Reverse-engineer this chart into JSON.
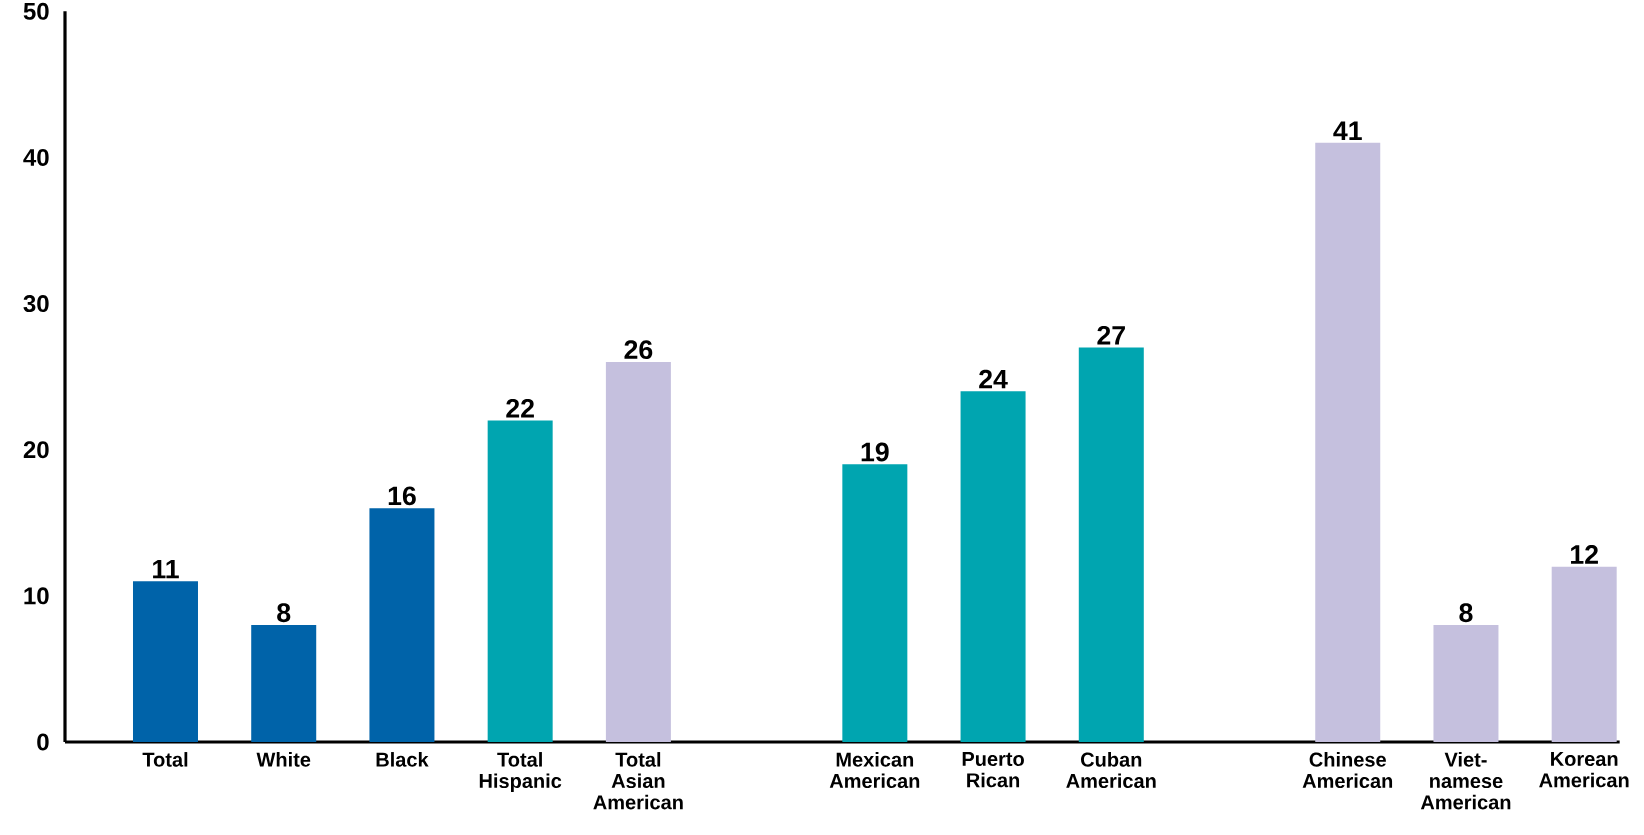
{
  "chart_data": {
    "type": "bar",
    "categories": [
      "Total",
      "White",
      "Black",
      "Total Hispanic",
      "Total Asian American",
      null,
      "Mexican American",
      "Puerto Rican",
      "Cuban American",
      null,
      "Chinese American",
      "Viet-namese American",
      "Korean American"
    ],
    "values": [
      11,
      8,
      16,
      22,
      26,
      null,
      19,
      24,
      27,
      null,
      41,
      8,
      12
    ],
    "colors": [
      "#0063a9",
      "#0063a9",
      "#0063a9",
      "#00a5b0",
      "#c5c0de",
      null,
      "#00a5b0",
      "#00a5b0",
      "#00a5b0",
      null,
      "#c5c0de",
      "#c5c0de",
      "#c5c0de"
    ],
    "ylim": [
      0,
      50
    ],
    "yticks": [
      0,
      10,
      20,
      30,
      40,
      50
    ],
    "data_labels": true,
    "grid": false
  }
}
